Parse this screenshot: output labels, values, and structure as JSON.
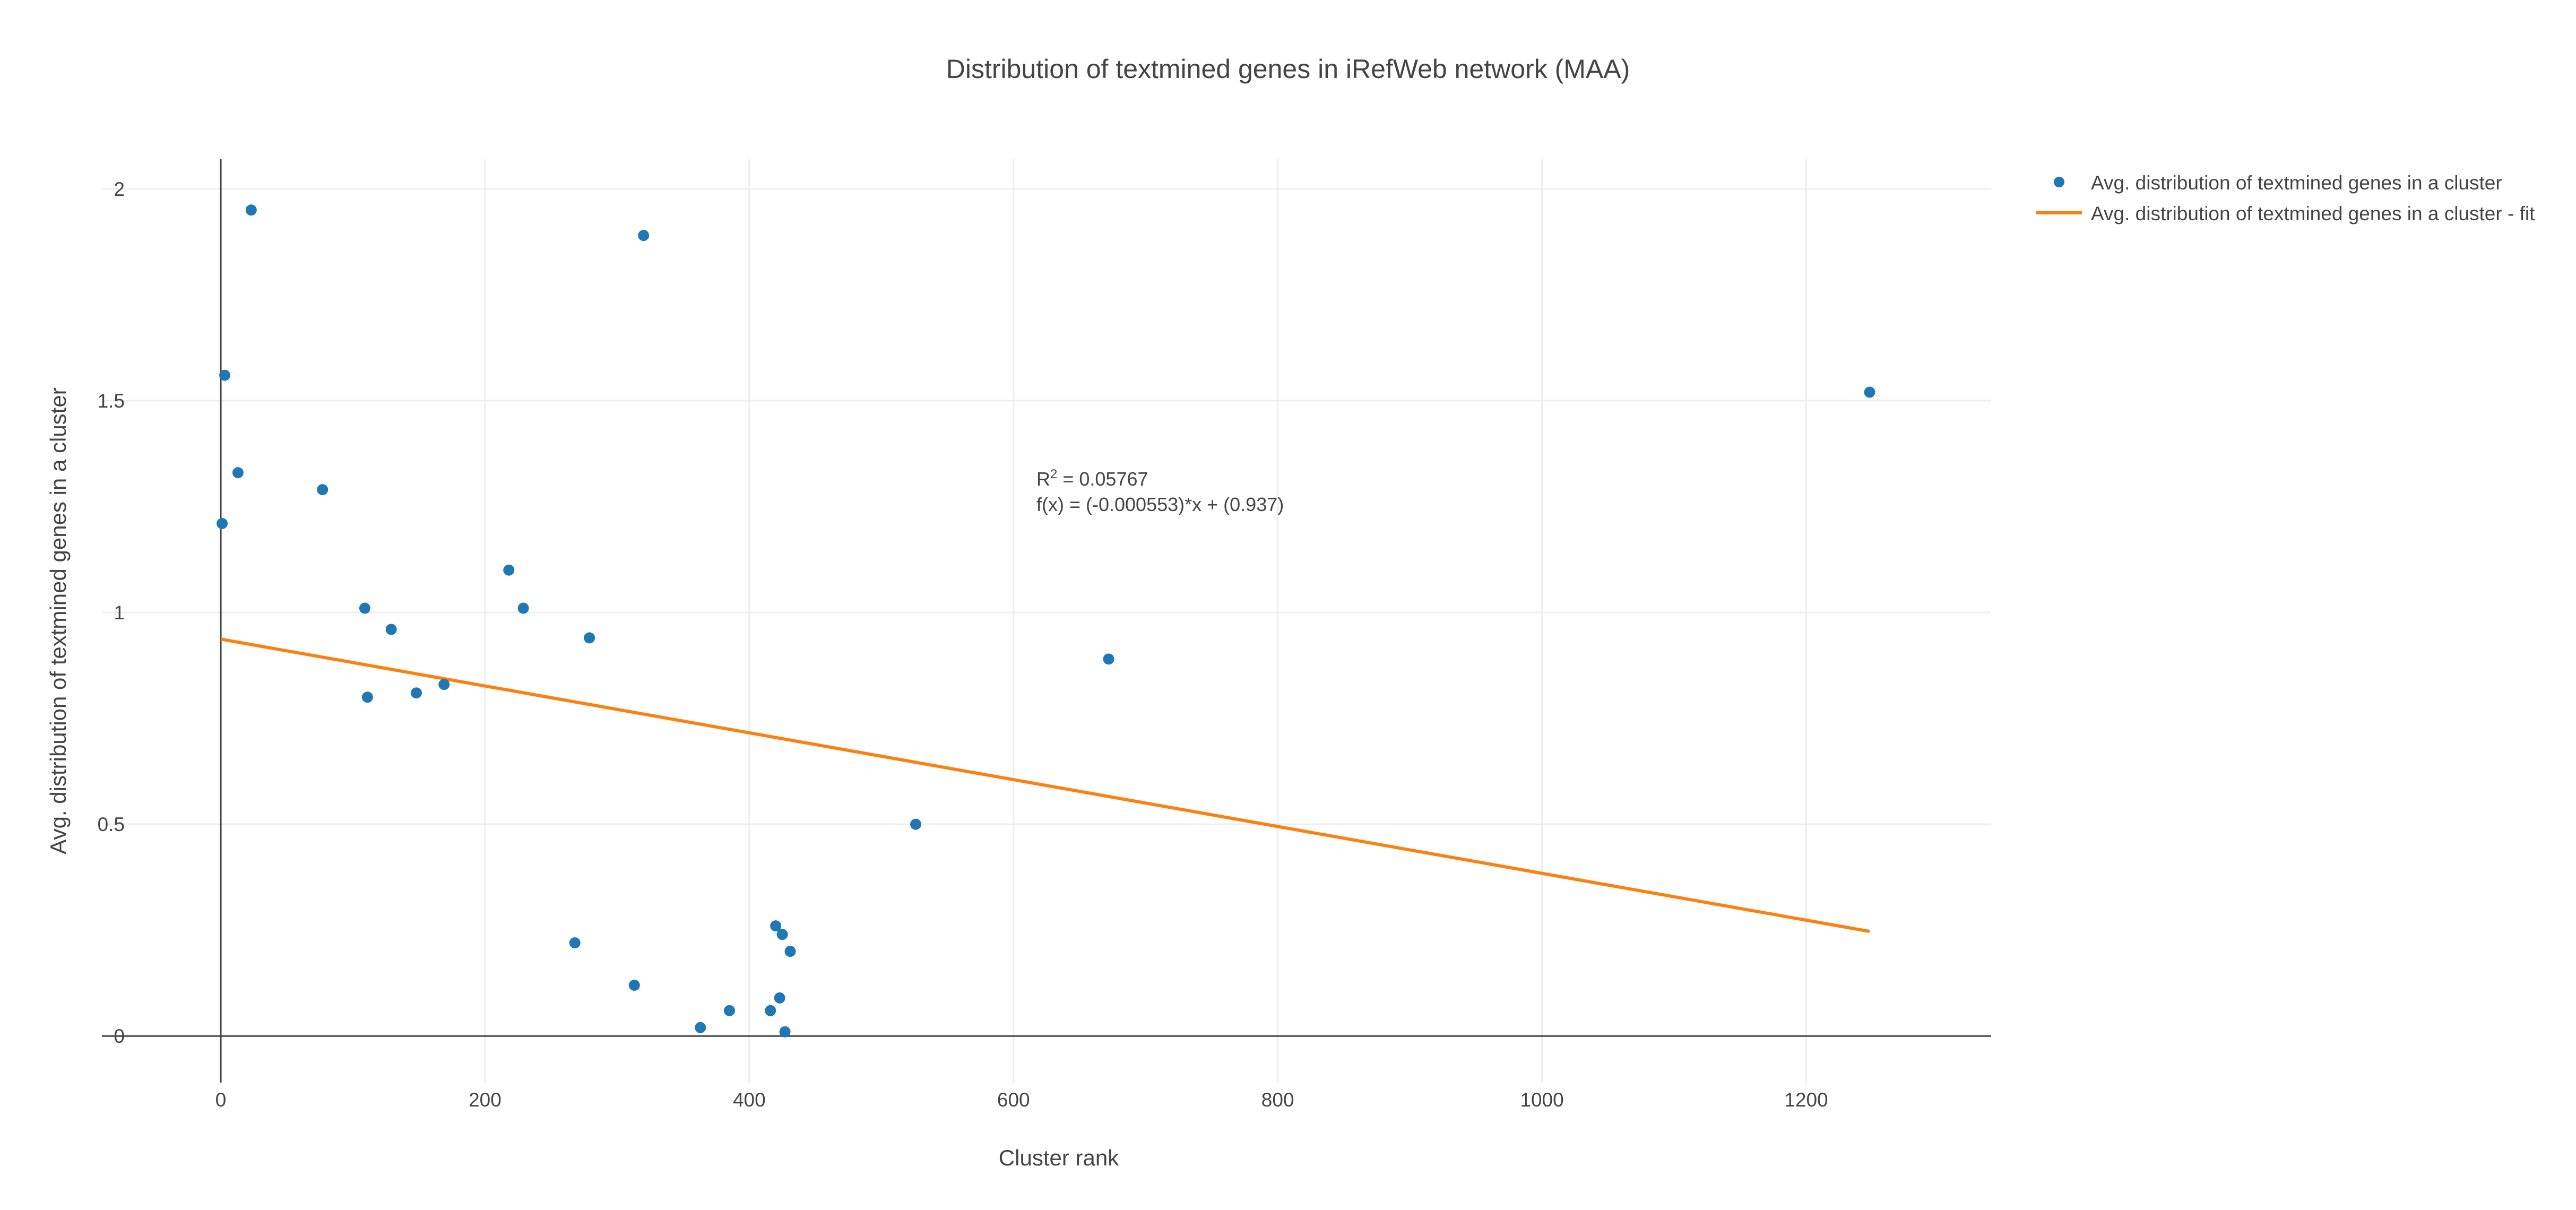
{
  "chart_data": {
    "type": "scatter",
    "title": "Distribution of textmined genes in iRefWeb network (MAA)",
    "xlabel": "Cluster rank",
    "ylabel": "Avg. distribution of textmined genes in a cluster",
    "xlim": [
      -90,
      1340
    ],
    "ylim": [
      -0.11,
      2.07
    ],
    "x_ticks": [
      0,
      200,
      400,
      600,
      800,
      1000,
      1200
    ],
    "y_ticks": [
      0,
      0.5,
      1,
      1.5,
      2
    ],
    "y_tick_labels": [
      "0",
      "0.5",
      "1",
      "1.5",
      "2"
    ],
    "grid": true,
    "legend_position": "top-right",
    "series": [
      {
        "name": "Avg. distribution of textmined genes in a cluster",
        "kind": "markers",
        "color": "#1f77b4",
        "x": [
          1,
          3,
          13,
          23,
          77,
          109,
          111,
          129,
          148,
          169,
          218,
          229,
          268,
          279,
          313,
          320,
          363,
          385,
          416,
          420,
          423,
          425,
          427,
          431,
          526,
          672,
          1248
        ],
        "y": [
          1.21,
          1.56,
          1.33,
          1.95,
          1.29,
          1.01,
          0.8,
          0.96,
          0.81,
          0.83,
          1.1,
          1.01,
          0.22,
          0.94,
          0.12,
          1.89,
          0.02,
          0.06,
          0.06,
          0.26,
          0.09,
          0.24,
          0.01,
          0.2,
          0.5,
          0.89,
          1.52
        ]
      },
      {
        "name": "Avg. distribution of textmined genes in a cluster - fit",
        "kind": "line",
        "color": "#ff7f0e",
        "x": [
          0,
          1248
        ],
        "y": [
          0.937,
          0.247
        ]
      }
    ],
    "annotation": {
      "r2_prefix": "R",
      "r2_sup": "2",
      "r2_value": " = 0.05767",
      "fx": "f(x) = (-0.000553)*x + (0.937)",
      "x": 605,
      "y": 1.32
    }
  }
}
